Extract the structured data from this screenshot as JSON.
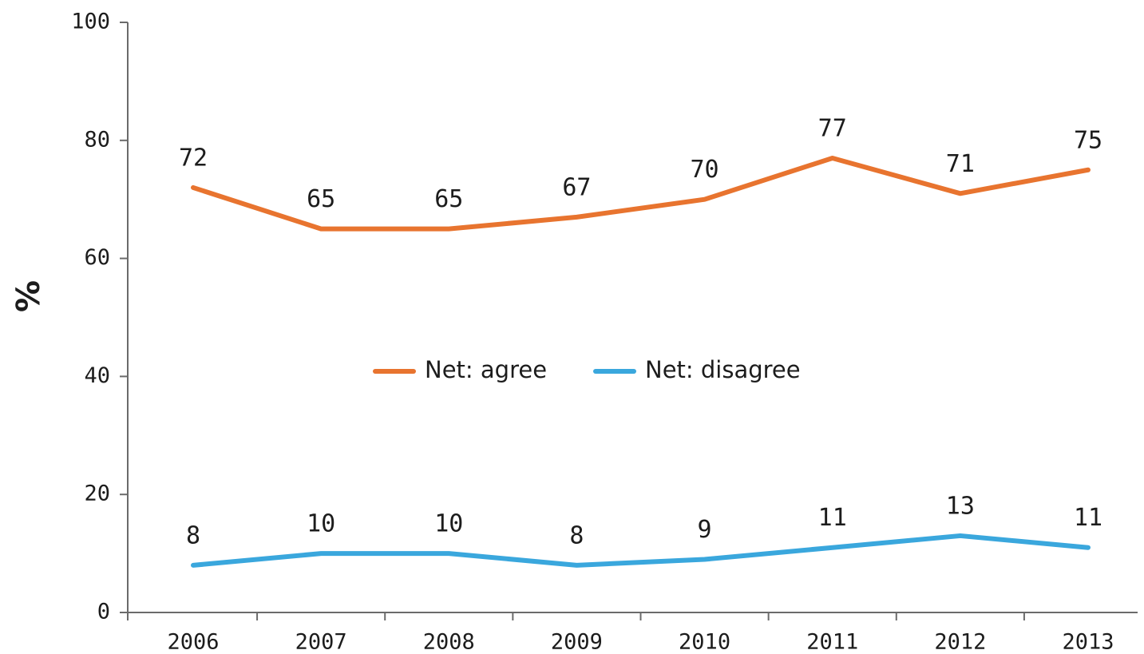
{
  "chart_data": {
    "type": "line",
    "categories": [
      "2006",
      "2007",
      "2008",
      "2009",
      "2010",
      "2011",
      "2012",
      "2013"
    ],
    "series": [
      {
        "name": "Net: agree",
        "color": "#e8742f",
        "values": [
          72,
          65,
          65,
          67,
          70,
          77,
          71,
          75
        ]
      },
      {
        "name": "Net: disagree",
        "color": "#3aa7dd",
        "values": [
          8,
          10,
          10,
          8,
          9,
          11,
          13,
          11
        ]
      }
    ],
    "ylabel": "%",
    "xlabel": "",
    "title": "",
    "ylim": [
      0,
      100
    ],
    "yticks": [
      "0",
      "20",
      "40",
      "60",
      "80",
      "100"
    ],
    "grid": false,
    "legend": "center"
  }
}
